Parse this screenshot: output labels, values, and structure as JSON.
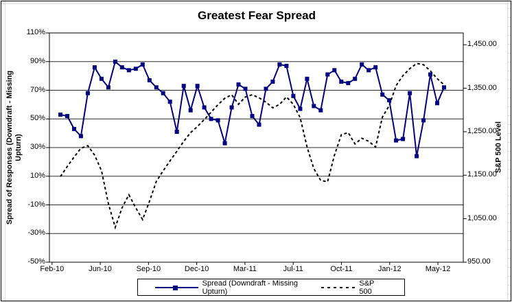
{
  "title": "Greatest Fear Spread",
  "legend": {
    "spread_label": "Spread (Downdraft - Missing Upturn)",
    "sp500_label": "S&P 500"
  },
  "chart_data": {
    "type": "line",
    "title": "Greatest Fear Spread",
    "grid": "horizontal",
    "legend_position": "bottom",
    "x": {
      "count": 57,
      "tick_positions": [
        0,
        7,
        14,
        21,
        28,
        35,
        42,
        49,
        56
      ],
      "tick_labels": [
        "Feb-10",
        "Jun-10",
        "Sep-10",
        "Dec-10",
        "Mar-11",
        "Jul-11",
        "Oct-11",
        "Jan-12",
        "May-12"
      ]
    },
    "left_axis": {
      "title": "Spread of Responses (Downdraft - Missing Upturn)",
      "unit": "%",
      "min": -50,
      "max": 110,
      "tick_step": 20,
      "tick_values": [
        110,
        90,
        70,
        50,
        30,
        10,
        -10,
        -30,
        -50
      ],
      "tick_labels": [
        "110%",
        "90%",
        "70%",
        "50%",
        "30%",
        "10%",
        "-10%",
        "-30%",
        "-50%"
      ]
    },
    "right_axis": {
      "title": "S&P 500 Level",
      "tick_values": [
        1450,
        1350,
        1250,
        1150,
        1050,
        950
      ],
      "tick_labels": [
        "1,450.00",
        "1,350.00",
        "1,250.00",
        "1,150.00",
        "1,050.00",
        "950.00"
      ]
    },
    "series": [
      {
        "name": "Spread (Downdraft - Missing Upturn)",
        "axis": "left",
        "color": "#000080",
        "style": "solid",
        "marker": "square",
        "values": [
          53,
          52,
          43,
          38,
          68,
          86,
          78,
          72,
          90,
          86,
          84,
          85,
          88,
          77,
          72,
          68,
          62,
          41,
          73,
          56,
          73,
          58,
          50,
          49,
          33,
          58,
          74,
          71,
          52,
          46,
          71,
          76,
          88,
          87,
          66,
          57,
          78,
          59,
          56,
          81,
          84,
          76,
          75,
          78,
          88,
          84,
          86,
          67,
          63,
          35,
          36,
          68,
          24,
          49,
          81,
          61,
          72
        ]
      },
      {
        "name": "S&P 500",
        "axis": "right",
        "color": "#000000",
        "style": "dashed",
        "marker": "none",
        "values": [
          1147,
          1170,
          1192,
          1212,
          1218,
          1196,
          1160,
          1085,
          1030,
          1075,
          1105,
          1075,
          1048,
          1090,
          1136,
          1160,
          1183,
          1205,
          1228,
          1248,
          1262,
          1278,
          1295,
          1312,
          1327,
          1335,
          1313,
          1330,
          1335,
          1328,
          1318,
          1305,
          1313,
          1330,
          1313,
          1282,
          1215,
          1165,
          1138,
          1135,
          1196,
          1243,
          1248,
          1222,
          1235,
          1228,
          1215,
          1284,
          1310,
          1356,
          1379,
          1395,
          1407,
          1404,
          1390,
          1372,
          1358
        ]
      }
    ]
  }
}
